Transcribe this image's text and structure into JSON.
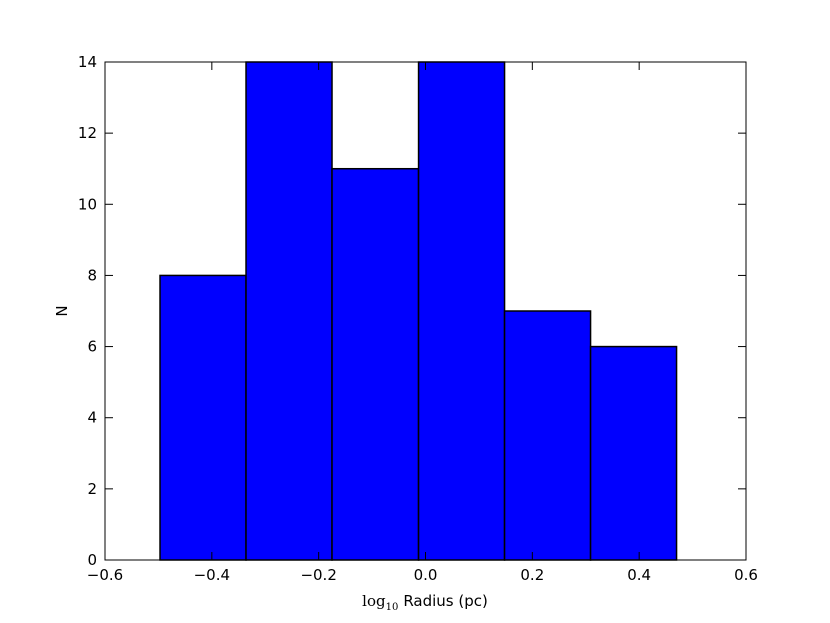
{
  "chart_data": {
    "type": "histogram",
    "xlabel": [
      "log",
      "10",
      "Radius (pc)"
    ],
    "ylabel": "N",
    "bins": [
      -0.497,
      -0.336,
      -0.175,
      -0.013,
      0.148,
      0.309,
      0.47
    ],
    "values": [
      8,
      14,
      11,
      14,
      7,
      6
    ],
    "color": "#0000ff",
    "edgecolor": "#000000",
    "xlim": [
      -0.6,
      0.6
    ],
    "xticks": [
      {
        "value": -0.6,
        "label": "−0.6"
      },
      {
        "value": -0.4,
        "label": "−0.4"
      },
      {
        "value": -0.2,
        "label": "−0.2"
      },
      {
        "value": 0,
        "label": "0.0"
      },
      0.2,
      0.4,
      0.6
    ],
    "ylim": [
      0,
      14
    ],
    "yticks": [
      0,
      2,
      4,
      6,
      8,
      10,
      12,
      14
    ],
    "grid": false
  }
}
